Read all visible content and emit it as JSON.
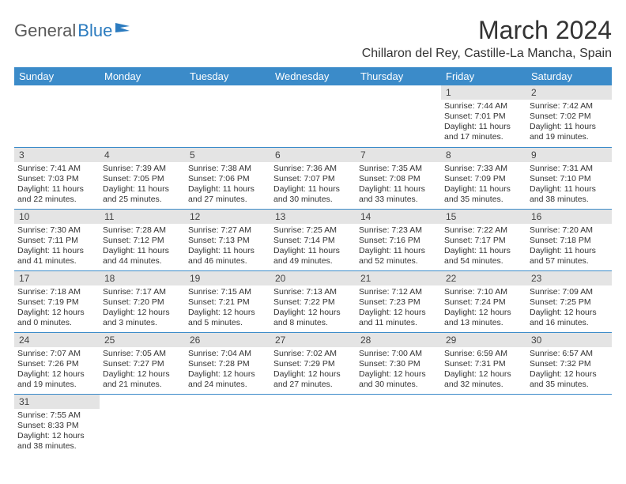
{
  "brand": {
    "part1": "General",
    "part2": "Blue",
    "flag_color": "#2b7bbf"
  },
  "title": "March 2024",
  "location": "Chillaron del Rey, Castille-La Mancha, Spain",
  "header_bg": "#3b8bc9",
  "header_fg": "#ffffff",
  "daynum_bg": "#e4e4e4",
  "row_border": "#3b8bc9",
  "weekdays": [
    "Sunday",
    "Monday",
    "Tuesday",
    "Wednesday",
    "Thursday",
    "Friday",
    "Saturday"
  ],
  "weeks": [
    [
      null,
      null,
      null,
      null,
      null,
      {
        "n": "1",
        "sr": "Sunrise: 7:44 AM",
        "ss": "Sunset: 7:01 PM",
        "dl": "Daylight: 11 hours and 17 minutes."
      },
      {
        "n": "2",
        "sr": "Sunrise: 7:42 AM",
        "ss": "Sunset: 7:02 PM",
        "dl": "Daylight: 11 hours and 19 minutes."
      }
    ],
    [
      {
        "n": "3",
        "sr": "Sunrise: 7:41 AM",
        "ss": "Sunset: 7:03 PM",
        "dl": "Daylight: 11 hours and 22 minutes."
      },
      {
        "n": "4",
        "sr": "Sunrise: 7:39 AM",
        "ss": "Sunset: 7:05 PM",
        "dl": "Daylight: 11 hours and 25 minutes."
      },
      {
        "n": "5",
        "sr": "Sunrise: 7:38 AM",
        "ss": "Sunset: 7:06 PM",
        "dl": "Daylight: 11 hours and 27 minutes."
      },
      {
        "n": "6",
        "sr": "Sunrise: 7:36 AM",
        "ss": "Sunset: 7:07 PM",
        "dl": "Daylight: 11 hours and 30 minutes."
      },
      {
        "n": "7",
        "sr": "Sunrise: 7:35 AM",
        "ss": "Sunset: 7:08 PM",
        "dl": "Daylight: 11 hours and 33 minutes."
      },
      {
        "n": "8",
        "sr": "Sunrise: 7:33 AM",
        "ss": "Sunset: 7:09 PM",
        "dl": "Daylight: 11 hours and 35 minutes."
      },
      {
        "n": "9",
        "sr": "Sunrise: 7:31 AM",
        "ss": "Sunset: 7:10 PM",
        "dl": "Daylight: 11 hours and 38 minutes."
      }
    ],
    [
      {
        "n": "10",
        "sr": "Sunrise: 7:30 AM",
        "ss": "Sunset: 7:11 PM",
        "dl": "Daylight: 11 hours and 41 minutes."
      },
      {
        "n": "11",
        "sr": "Sunrise: 7:28 AM",
        "ss": "Sunset: 7:12 PM",
        "dl": "Daylight: 11 hours and 44 minutes."
      },
      {
        "n": "12",
        "sr": "Sunrise: 7:27 AM",
        "ss": "Sunset: 7:13 PM",
        "dl": "Daylight: 11 hours and 46 minutes."
      },
      {
        "n": "13",
        "sr": "Sunrise: 7:25 AM",
        "ss": "Sunset: 7:14 PM",
        "dl": "Daylight: 11 hours and 49 minutes."
      },
      {
        "n": "14",
        "sr": "Sunrise: 7:23 AM",
        "ss": "Sunset: 7:16 PM",
        "dl": "Daylight: 11 hours and 52 minutes."
      },
      {
        "n": "15",
        "sr": "Sunrise: 7:22 AM",
        "ss": "Sunset: 7:17 PM",
        "dl": "Daylight: 11 hours and 54 minutes."
      },
      {
        "n": "16",
        "sr": "Sunrise: 7:20 AM",
        "ss": "Sunset: 7:18 PM",
        "dl": "Daylight: 11 hours and 57 minutes."
      }
    ],
    [
      {
        "n": "17",
        "sr": "Sunrise: 7:18 AM",
        "ss": "Sunset: 7:19 PM",
        "dl": "Daylight: 12 hours and 0 minutes."
      },
      {
        "n": "18",
        "sr": "Sunrise: 7:17 AM",
        "ss": "Sunset: 7:20 PM",
        "dl": "Daylight: 12 hours and 3 minutes."
      },
      {
        "n": "19",
        "sr": "Sunrise: 7:15 AM",
        "ss": "Sunset: 7:21 PM",
        "dl": "Daylight: 12 hours and 5 minutes."
      },
      {
        "n": "20",
        "sr": "Sunrise: 7:13 AM",
        "ss": "Sunset: 7:22 PM",
        "dl": "Daylight: 12 hours and 8 minutes."
      },
      {
        "n": "21",
        "sr": "Sunrise: 7:12 AM",
        "ss": "Sunset: 7:23 PM",
        "dl": "Daylight: 12 hours and 11 minutes."
      },
      {
        "n": "22",
        "sr": "Sunrise: 7:10 AM",
        "ss": "Sunset: 7:24 PM",
        "dl": "Daylight: 12 hours and 13 minutes."
      },
      {
        "n": "23",
        "sr": "Sunrise: 7:09 AM",
        "ss": "Sunset: 7:25 PM",
        "dl": "Daylight: 12 hours and 16 minutes."
      }
    ],
    [
      {
        "n": "24",
        "sr": "Sunrise: 7:07 AM",
        "ss": "Sunset: 7:26 PM",
        "dl": "Daylight: 12 hours and 19 minutes."
      },
      {
        "n": "25",
        "sr": "Sunrise: 7:05 AM",
        "ss": "Sunset: 7:27 PM",
        "dl": "Daylight: 12 hours and 21 minutes."
      },
      {
        "n": "26",
        "sr": "Sunrise: 7:04 AM",
        "ss": "Sunset: 7:28 PM",
        "dl": "Daylight: 12 hours and 24 minutes."
      },
      {
        "n": "27",
        "sr": "Sunrise: 7:02 AM",
        "ss": "Sunset: 7:29 PM",
        "dl": "Daylight: 12 hours and 27 minutes."
      },
      {
        "n": "28",
        "sr": "Sunrise: 7:00 AM",
        "ss": "Sunset: 7:30 PM",
        "dl": "Daylight: 12 hours and 30 minutes."
      },
      {
        "n": "29",
        "sr": "Sunrise: 6:59 AM",
        "ss": "Sunset: 7:31 PM",
        "dl": "Daylight: 12 hours and 32 minutes."
      },
      {
        "n": "30",
        "sr": "Sunrise: 6:57 AM",
        "ss": "Sunset: 7:32 PM",
        "dl": "Daylight: 12 hours and 35 minutes."
      }
    ],
    [
      {
        "n": "31",
        "sr": "Sunrise: 7:55 AM",
        "ss": "Sunset: 8:33 PM",
        "dl": "Daylight: 12 hours and 38 minutes."
      },
      null,
      null,
      null,
      null,
      null,
      null
    ]
  ]
}
